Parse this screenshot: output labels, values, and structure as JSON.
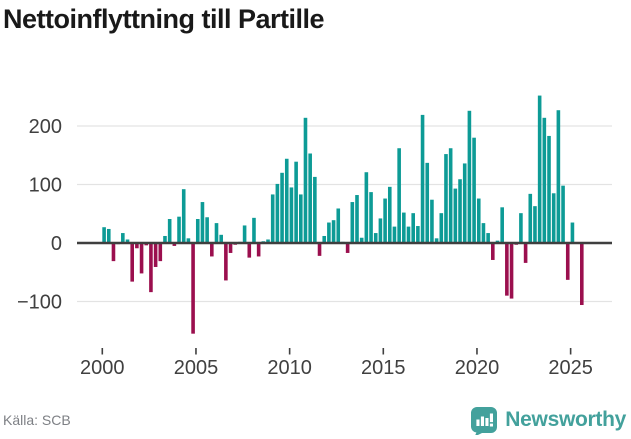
{
  "title": "Nettoinflyttning till Partille",
  "source": {
    "label": "Källa: SCB"
  },
  "branding": {
    "name": "Newsworthy",
    "icon": "newsworthy-speech-bubble-bar-chart-icon",
    "color": "#43a19c"
  },
  "colors": {
    "positive_bar": "#0d9b96",
    "negative_bar": "#9b0f4e",
    "axis_line": "#3f3f3f",
    "grid_line": "#e3e3e3",
    "tick_text": "#404040",
    "background": "#ffffff"
  },
  "chart_data": {
    "type": "bar",
    "title": "Nettoinflyttning till Partille",
    "xlabel": "",
    "ylabel": "",
    "period": "quarterly",
    "start_year": 2000,
    "x_tick_labels": [
      "2000",
      "2005",
      "2010",
      "2015",
      "2020",
      "2025"
    ],
    "x_tick_years": [
      2000,
      2005,
      2010,
      2015,
      2020,
      2025
    ],
    "y_tick_labels": [
      "200",
      "100",
      "0",
      "−100"
    ],
    "y_ticks": [
      200,
      100,
      0,
      -100
    ],
    "ylim": [
      -165,
      260
    ],
    "grid": "horizontal",
    "legend": "none",
    "quarters": [
      "2000-Q1",
      "2000-Q2",
      "2000-Q3",
      "2000-Q4",
      "2001-Q1",
      "2001-Q2",
      "2001-Q3",
      "2001-Q4",
      "2002-Q1",
      "2002-Q2",
      "2002-Q3",
      "2002-Q4",
      "2003-Q1",
      "2003-Q2",
      "2003-Q3",
      "2003-Q4",
      "2004-Q1",
      "2004-Q2",
      "2004-Q3",
      "2004-Q4",
      "2005-Q1",
      "2005-Q2",
      "2005-Q3",
      "2005-Q4",
      "2006-Q1",
      "2006-Q2",
      "2006-Q3",
      "2006-Q4",
      "2007-Q1",
      "2007-Q2",
      "2007-Q3",
      "2007-Q4",
      "2008-Q1",
      "2008-Q2",
      "2008-Q3",
      "2008-Q4",
      "2009-Q1",
      "2009-Q2",
      "2009-Q3",
      "2009-Q4",
      "2010-Q1",
      "2010-Q2",
      "2010-Q3",
      "2010-Q4",
      "2011-Q1",
      "2011-Q2",
      "2011-Q3",
      "2011-Q4",
      "2012-Q1",
      "2012-Q2",
      "2012-Q3",
      "2012-Q4",
      "2013-Q1",
      "2013-Q2",
      "2013-Q3",
      "2013-Q4",
      "2014-Q1",
      "2014-Q2",
      "2014-Q3",
      "2014-Q4",
      "2015-Q1",
      "2015-Q2",
      "2015-Q3",
      "2015-Q4",
      "2016-Q1",
      "2016-Q2",
      "2016-Q3",
      "2016-Q4",
      "2017-Q1",
      "2017-Q2",
      "2017-Q3",
      "2017-Q4",
      "2018-Q1",
      "2018-Q2",
      "2018-Q3",
      "2018-Q4",
      "2019-Q1",
      "2019-Q2",
      "2019-Q3",
      "2019-Q4",
      "2020-Q1",
      "2020-Q2",
      "2020-Q3",
      "2020-Q4",
      "2021-Q1",
      "2021-Q2",
      "2021-Q3",
      "2021-Q4",
      "2022-Q1",
      "2022-Q2",
      "2022-Q3",
      "2022-Q4",
      "2023-Q1",
      "2023-Q2",
      "2023-Q3",
      "2023-Q4",
      "2024-Q1",
      "2024-Q2",
      "2024-Q3",
      "2024-Q4",
      "2025-Q1",
      "2025-Q2",
      "2025-Q3"
    ],
    "values": [
      27,
      24,
      -31,
      -2,
      17,
      6,
      -66,
      -9,
      -52,
      -4,
      -84,
      -41,
      -31,
      12,
      41,
      -5,
      45,
      92,
      8,
      -155,
      41,
      70,
      44,
      -23,
      34,
      14,
      -64,
      -17,
      -3,
      2,
      30,
      -25,
      43,
      -23,
      3,
      6,
      83,
      101,
      120,
      144,
      95,
      139,
      83,
      214,
      153,
      113,
      -22,
      12,
      35,
      39,
      59,
      2,
      -17,
      70,
      82,
      9,
      121,
      87,
      17,
      42,
      76,
      96,
      28,
      162,
      52,
      28,
      51,
      29,
      219,
      137,
      74,
      8,
      51,
      152,
      162,
      93,
      109,
      136,
      226,
      180,
      76,
      34,
      17,
      -29,
      4,
      61,
      -90,
      -95,
      -3,
      51,
      -34,
      84,
      63,
      252,
      214,
      183,
      85,
      227,
      98,
      -63,
      35,
      0,
      -106
    ]
  }
}
